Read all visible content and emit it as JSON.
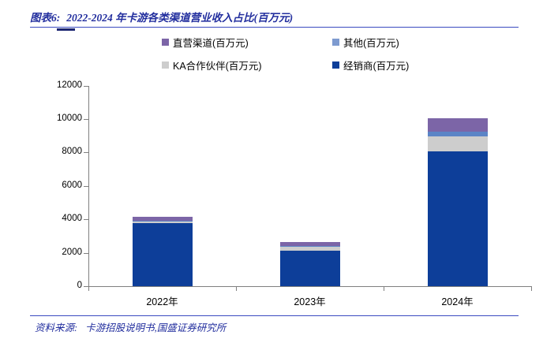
{
  "header": {
    "tag": "图表6:",
    "title": "2022-2024 年卡游各类渠道营业收入占比(百万元)"
  },
  "legend": [
    {
      "label": "直营渠道(百万元)",
      "color": "#7C65A7"
    },
    {
      "label": "其他(百万元)",
      "color": "#7E9BD0"
    },
    {
      "label": "KA合作伙伴(百万元)",
      "color": "#CDCDCD"
    },
    {
      "label": "经销商(百万元)",
      "color": "#0D3E99"
    }
  ],
  "chart_data": {
    "type": "bar",
    "stacked": true,
    "title": "2022-2024 年卡游各类渠道营业收入占比(百万元)",
    "categories": [
      "2022年",
      "2023年",
      "2024年"
    ],
    "series": [
      {
        "name": "经销商(百万元)",
        "color": "#0D3E99",
        "values": [
          3775,
          2116,
          8046
        ]
      },
      {
        "name": "KA合作伙伴(百万元)",
        "color": "#CDCDCD",
        "values": [
          128,
          267,
          919
        ]
      },
      {
        "name": "其他(百万元)",
        "color": "#5B84C6",
        "values": [
          18,
          20,
          269
        ]
      },
      {
        "name": "直营渠道(百万元)",
        "color": "#7C65A7",
        "values": [
          210,
          259,
          823
        ]
      }
    ],
    "xlabel": "",
    "ylabel": "",
    "ylim": [
      0,
      12000
    ],
    "ytick_step": 2000,
    "yticks": [
      0,
      2000,
      4000,
      6000,
      8000,
      10000,
      12000
    ],
    "grid": false,
    "legend_position": "top",
    "stack_order_bottom_to_top": [
      "经销商",
      "KA合作伙伴",
      "其他",
      "直营渠道"
    ]
  },
  "footer": {
    "prefix": "资料来源:",
    "text": "卡游招股说明书,国盛证券研究所"
  }
}
